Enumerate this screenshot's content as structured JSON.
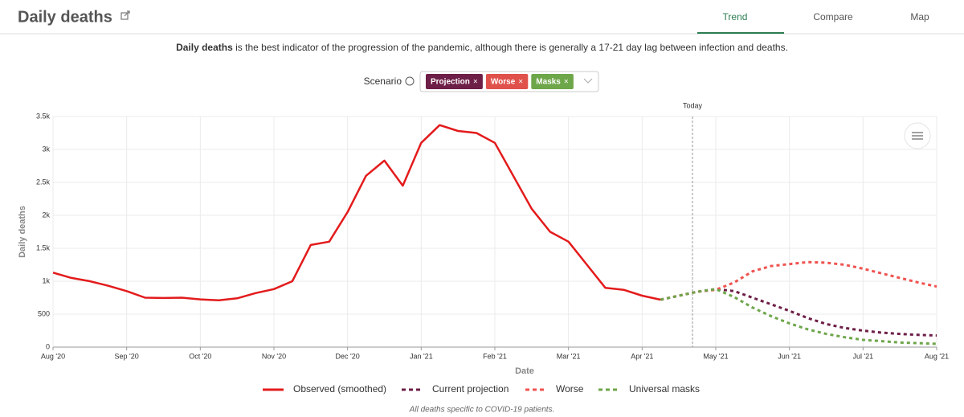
{
  "header": {
    "title": "Daily deaths",
    "tabs": [
      "Trend",
      "Compare",
      "Map"
    ]
  },
  "description": {
    "bold": "Daily deaths",
    "rest": "is the best indicator of the progression of the pandemic, although there is generally a 17-21 day lag between infection and deaths."
  },
  "scenario": {
    "label": "Scenario",
    "chips": [
      "Projection",
      "Worse",
      "Masks"
    ]
  },
  "footnote": "All deaths specific to COVID-19 patients.",
  "chart_data": {
    "type": "line",
    "annotation": "Today",
    "x_label": "Date",
    "y_label": "Daily deaths",
    "categories": [
      "Aug '20",
      null,
      null,
      null,
      "Sep '20",
      null,
      null,
      null,
      "Oct '20",
      null,
      null,
      null,
      "Nov '20",
      null,
      null,
      null,
      "Dec '20",
      null,
      null,
      null,
      "Jan '21",
      null,
      null,
      null,
      "Feb '21",
      null,
      null,
      null,
      "Mar '21",
      null,
      null,
      null,
      "Apr '21",
      null,
      null,
      null,
      "May '21",
      null,
      null,
      null,
      "Jun '21",
      null,
      null,
      null,
      "Jul '21",
      null,
      null,
      null,
      "Aug '21"
    ],
    "ylim": [
      0,
      3500
    ],
    "yticks": [
      0,
      500,
      {
        "value": 1000,
        "label": "1k"
      },
      {
        "value": 1500,
        "label": "1.5k"
      },
      {
        "value": 2000,
        "label": "2k"
      },
      {
        "value": 2500,
        "label": "2.5k"
      },
      {
        "value": 3000,
        "label": "3k"
      },
      {
        "value": 3500,
        "label": "3.5k"
      }
    ],
    "grid": true,
    "series": [
      {
        "name": "Observed (smoothed)",
        "color": "#e31b1c",
        "dashed": false,
        "values": [
          1130,
          1050,
          1000,
          930,
          850,
          750,
          745,
          750,
          725,
          710,
          740,
          820,
          880,
          1000,
          1550,
          1600,
          2050,
          2600,
          2830,
          2450,
          3100,
          3370,
          3280,
          3250,
          3100,
          2600,
          2100,
          1750,
          1600,
          1250,
          900,
          870,
          780,
          720,
          null,
          null,
          null,
          null,
          null,
          null,
          null,
          null,
          null,
          null,
          null,
          null,
          null,
          null,
          null
        ]
      },
      {
        "name": "Current projection",
        "color": "#6e1f47",
        "dashed": true,
        "values": [
          null,
          null,
          null,
          null,
          null,
          null,
          null,
          null,
          null,
          null,
          null,
          null,
          null,
          null,
          null,
          null,
          null,
          null,
          null,
          null,
          null,
          null,
          null,
          null,
          null,
          null,
          null,
          null,
          null,
          null,
          null,
          null,
          null,
          720,
          780,
          840,
          880,
          850,
          750,
          650,
          550,
          440,
          350,
          290,
          250,
          220,
          200,
          185,
          175
        ]
      },
      {
        "name": "Worse",
        "color": "#ef5350",
        "dashed": true,
        "values": [
          null,
          null,
          null,
          null,
          null,
          null,
          null,
          null,
          null,
          null,
          null,
          null,
          null,
          null,
          null,
          null,
          null,
          null,
          null,
          null,
          null,
          null,
          null,
          null,
          null,
          null,
          null,
          null,
          null,
          null,
          null,
          null,
          null,
          720,
          780,
          840,
          870,
          980,
          1150,
          1230,
          1260,
          1290,
          1280,
          1250,
          1190,
          1120,
          1050,
          980,
          920
        ]
      },
      {
        "name": "Universal masks",
        "color": "#6ea64a",
        "dashed": true,
        "values": [
          null,
          null,
          null,
          null,
          null,
          null,
          null,
          null,
          null,
          null,
          null,
          null,
          null,
          null,
          null,
          null,
          null,
          null,
          null,
          null,
          null,
          null,
          null,
          null,
          null,
          null,
          null,
          null,
          null,
          null,
          null,
          null,
          null,
          720,
          780,
          840,
          880,
          760,
          600,
          470,
          360,
          270,
          200,
          150,
          110,
          90,
          70,
          60,
          50
        ]
      }
    ]
  }
}
